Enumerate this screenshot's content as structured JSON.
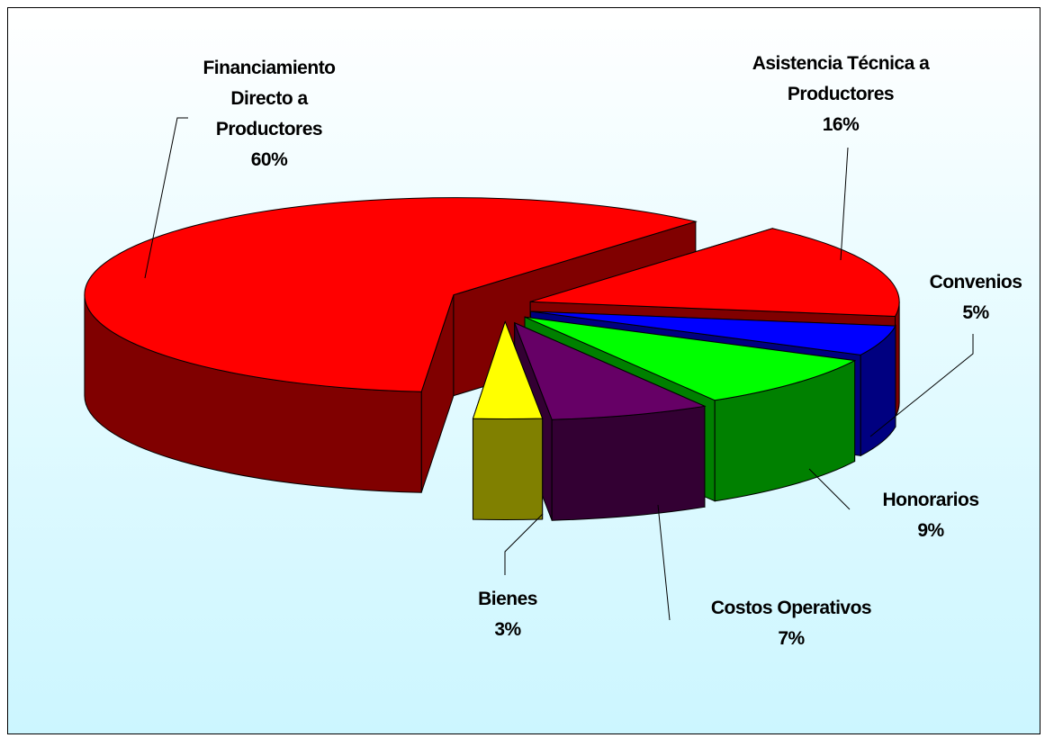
{
  "chart_data": {
    "type": "pie3d",
    "categories": [
      "Financiamiento Directo a Productores",
      "Asistencia Técnica a Productores",
      "Convenios",
      "Honorarios",
      "Costos Operativos",
      "Bienes"
    ],
    "values": [
      60,
      16,
      5,
      9,
      7,
      3
    ],
    "value_labels": [
      "60%",
      "16%",
      "5%",
      "9%",
      "7%",
      "3%"
    ],
    "colors": [
      "#ff0000",
      "#ff0000",
      "#0000ff",
      "#00ff00",
      "#660066",
      "#ffff00"
    ]
  }
}
